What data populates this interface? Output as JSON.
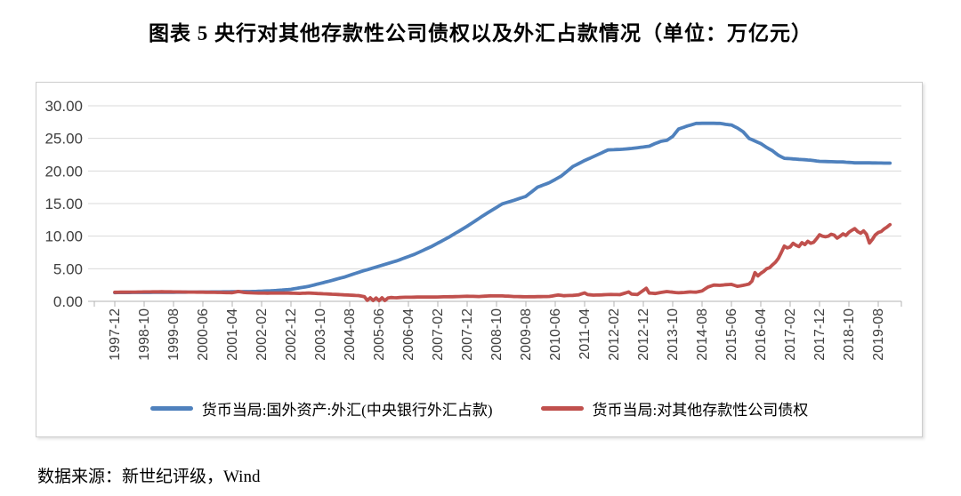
{
  "page": {
    "title": "图表 5  央行对其他存款性公司债权以及外汇占款情况（单位：万亿元）",
    "source": "数据来源：新世纪评级，Wind"
  },
  "chart_data": {
    "type": "line",
    "title": "图表 5  央行对其他存款性公司债权以及外汇占款情况（单位：万亿元）",
    "unit": "万亿元",
    "ylim": [
      0,
      30
    ],
    "y_tick_step": 5,
    "y_tick_labels": [
      "30.00",
      "25.00",
      "20.00",
      "15.00",
      "10.00",
      "5.00",
      "0.00"
    ],
    "grid": "horizontal",
    "legend_position": "bottom",
    "x_start": "1997-12",
    "x_end": "2019-12",
    "x_tick_interval_months": 10,
    "x_tick_labels": [
      "1997-12",
      "1998-10",
      "1999-08",
      "2000-06",
      "2001-04",
      "2002-02",
      "2002-12",
      "2003-10",
      "2004-08",
      "2005-06",
      "2006-04",
      "2007-02",
      "2007-12",
      "2008-10",
      "2009-08",
      "2010-06",
      "2011-04",
      "2012-02",
      "2012-12",
      "2013-10",
      "2014-08",
      "2015-06",
      "2016-04",
      "2017-02",
      "2017-12",
      "2018-10",
      "2019-08"
    ],
    "point_format": "[months_since_1997-12, value_in_trillion_yuan]",
    "series": [
      {
        "name": "货币当局:国外资产:外汇(中央银行外汇占款)",
        "color": "#4F81BD",
        "points": [
          [
            0,
            1.34
          ],
          [
            6,
            1.36
          ],
          [
            12,
            1.37
          ],
          [
            18,
            1.39
          ],
          [
            24,
            1.41
          ],
          [
            30,
            1.43
          ],
          [
            36,
            1.45
          ],
          [
            42,
            1.48
          ],
          [
            48,
            1.52
          ],
          [
            54,
            1.63
          ],
          [
            60,
            1.84
          ],
          [
            66,
            2.3
          ],
          [
            72,
            2.98
          ],
          [
            78,
            3.7
          ],
          [
            84,
            4.59
          ],
          [
            90,
            5.4
          ],
          [
            96,
            6.21
          ],
          [
            102,
            7.2
          ],
          [
            108,
            8.44
          ],
          [
            114,
            9.9
          ],
          [
            120,
            11.52
          ],
          [
            126,
            13.3
          ],
          [
            132,
            14.96
          ],
          [
            136,
            15.5
          ],
          [
            140,
            16.1
          ],
          [
            144,
            17.52
          ],
          [
            148,
            18.2
          ],
          [
            152,
            19.2
          ],
          [
            156,
            20.68
          ],
          [
            160,
            21.6
          ],
          [
            164,
            22.4
          ],
          [
            168,
            23.24
          ],
          [
            172,
            23.3
          ],
          [
            176,
            23.45
          ],
          [
            180,
            23.67
          ],
          [
            182,
            23.8
          ],
          [
            184,
            24.2
          ],
          [
            186,
            24.55
          ],
          [
            188,
            24.7
          ],
          [
            190,
            25.3
          ],
          [
            192,
            26.43
          ],
          [
            195,
            26.9
          ],
          [
            198,
            27.3
          ],
          [
            202,
            27.32
          ],
          [
            206,
            27.3
          ],
          [
            208,
            27.15
          ],
          [
            210,
            27.05
          ],
          [
            212,
            26.6
          ],
          [
            214,
            26.0
          ],
          [
            216,
            25.0
          ],
          [
            218,
            24.6
          ],
          [
            220,
            24.2
          ],
          [
            222,
            23.6
          ],
          [
            224,
            23.1
          ],
          [
            226,
            22.4
          ],
          [
            228,
            21.94
          ],
          [
            231,
            21.85
          ],
          [
            234,
            21.75
          ],
          [
            237,
            21.65
          ],
          [
            240,
            21.48
          ],
          [
            244,
            21.42
          ],
          [
            248,
            21.38
          ],
          [
            252,
            21.25
          ],
          [
            256,
            21.25
          ],
          [
            260,
            21.22
          ],
          [
            264,
            21.2
          ]
        ]
      },
      {
        "name": "货币当局:对其他存款性公司债权",
        "color": "#C0504D",
        "points": [
          [
            0,
            1.39
          ],
          [
            4,
            1.41
          ],
          [
            8,
            1.43
          ],
          [
            12,
            1.45
          ],
          [
            16,
            1.47
          ],
          [
            20,
            1.45
          ],
          [
            24,
            1.43
          ],
          [
            28,
            1.41
          ],
          [
            32,
            1.39
          ],
          [
            36,
            1.36
          ],
          [
            40,
            1.32
          ],
          [
            42,
            1.52
          ],
          [
            44,
            1.36
          ],
          [
            48,
            1.28
          ],
          [
            52,
            1.26
          ],
          [
            56,
            1.28
          ],
          [
            60,
            1.26
          ],
          [
            63,
            1.22
          ],
          [
            66,
            1.28
          ],
          [
            69,
            1.2
          ],
          [
            72,
            1.14
          ],
          [
            76,
            1.05
          ],
          [
            80,
            0.95
          ],
          [
            83,
            0.88
          ],
          [
            85,
            0.72
          ],
          [
            86,
            0.15
          ],
          [
            87,
            0.55
          ],
          [
            88,
            0.12
          ],
          [
            89,
            0.52
          ],
          [
            90,
            0.1
          ],
          [
            91,
            0.55
          ],
          [
            92,
            0.12
          ],
          [
            93,
            0.5
          ],
          [
            94,
            0.58
          ],
          [
            96,
            0.55
          ],
          [
            98,
            0.62
          ],
          [
            101,
            0.63
          ],
          [
            104,
            0.66
          ],
          [
            108,
            0.65
          ],
          [
            112,
            0.69
          ],
          [
            116,
            0.72
          ],
          [
            120,
            0.78
          ],
          [
            124,
            0.74
          ],
          [
            128,
            0.84
          ],
          [
            132,
            0.83
          ],
          [
            136,
            0.74
          ],
          [
            140,
            0.7
          ],
          [
            144,
            0.72
          ],
          [
            148,
            0.75
          ],
          [
            151,
            0.97
          ],
          [
            153,
            0.86
          ],
          [
            156,
            0.92
          ],
          [
            158,
            1.0
          ],
          [
            160,
            1.3
          ],
          [
            161,
            1.04
          ],
          [
            163,
            0.95
          ],
          [
            166,
            1.0
          ],
          [
            169,
            1.05
          ],
          [
            172,
            1.02
          ],
          [
            175,
            1.44
          ],
          [
            176,
            1.1
          ],
          [
            178,
            1.05
          ],
          [
            181,
            2.0
          ],
          [
            182,
            1.27
          ],
          [
            184,
            1.2
          ],
          [
            186,
            1.36
          ],
          [
            188,
            1.5
          ],
          [
            190,
            1.4
          ],
          [
            192,
            1.31
          ],
          [
            194,
            1.37
          ],
          [
            196,
            1.44
          ],
          [
            198,
            1.4
          ],
          [
            200,
            1.6
          ],
          [
            201,
            1.9
          ],
          [
            202,
            2.2
          ],
          [
            204,
            2.5
          ],
          [
            206,
            2.45
          ],
          [
            208,
            2.55
          ],
          [
            210,
            2.6
          ],
          [
            212,
            2.3
          ],
          [
            214,
            2.45
          ],
          [
            216,
            2.66
          ],
          [
            217,
            3.1
          ],
          [
            218,
            4.4
          ],
          [
            219,
            3.9
          ],
          [
            220,
            4.3
          ],
          [
            221,
            4.6
          ],
          [
            222,
            5.0
          ],
          [
            223,
            5.15
          ],
          [
            224,
            5.6
          ],
          [
            225,
            6.0
          ],
          [
            226,
            6.6
          ],
          [
            227,
            7.5
          ],
          [
            228,
            8.47
          ],
          [
            229,
            8.2
          ],
          [
            230,
            8.35
          ],
          [
            231,
            8.9
          ],
          [
            232,
            8.6
          ],
          [
            233,
            8.4
          ],
          [
            234,
            9.0
          ],
          [
            235,
            8.7
          ],
          [
            236,
            9.2
          ],
          [
            237,
            8.9
          ],
          [
            238,
            9.05
          ],
          [
            239,
            9.6
          ],
          [
            240,
            10.22
          ],
          [
            241,
            10.0
          ],
          [
            242,
            9.9
          ],
          [
            243,
            10.0
          ],
          [
            244,
            10.3
          ],
          [
            245,
            10.15
          ],
          [
            246,
            9.7
          ],
          [
            247,
            10.0
          ],
          [
            248,
            10.35
          ],
          [
            249,
            10.1
          ],
          [
            250,
            10.6
          ],
          [
            251,
            10.9
          ],
          [
            252,
            11.15
          ],
          [
            253,
            10.7
          ],
          [
            254,
            10.45
          ],
          [
            255,
            10.8
          ],
          [
            256,
            10.3
          ],
          [
            257,
            8.95
          ],
          [
            258,
            9.5
          ],
          [
            259,
            10.2
          ],
          [
            260,
            10.55
          ],
          [
            261,
            10.7
          ],
          [
            262,
            11.1
          ],
          [
            263,
            11.4
          ],
          [
            264,
            11.77
          ]
        ]
      }
    ]
  }
}
